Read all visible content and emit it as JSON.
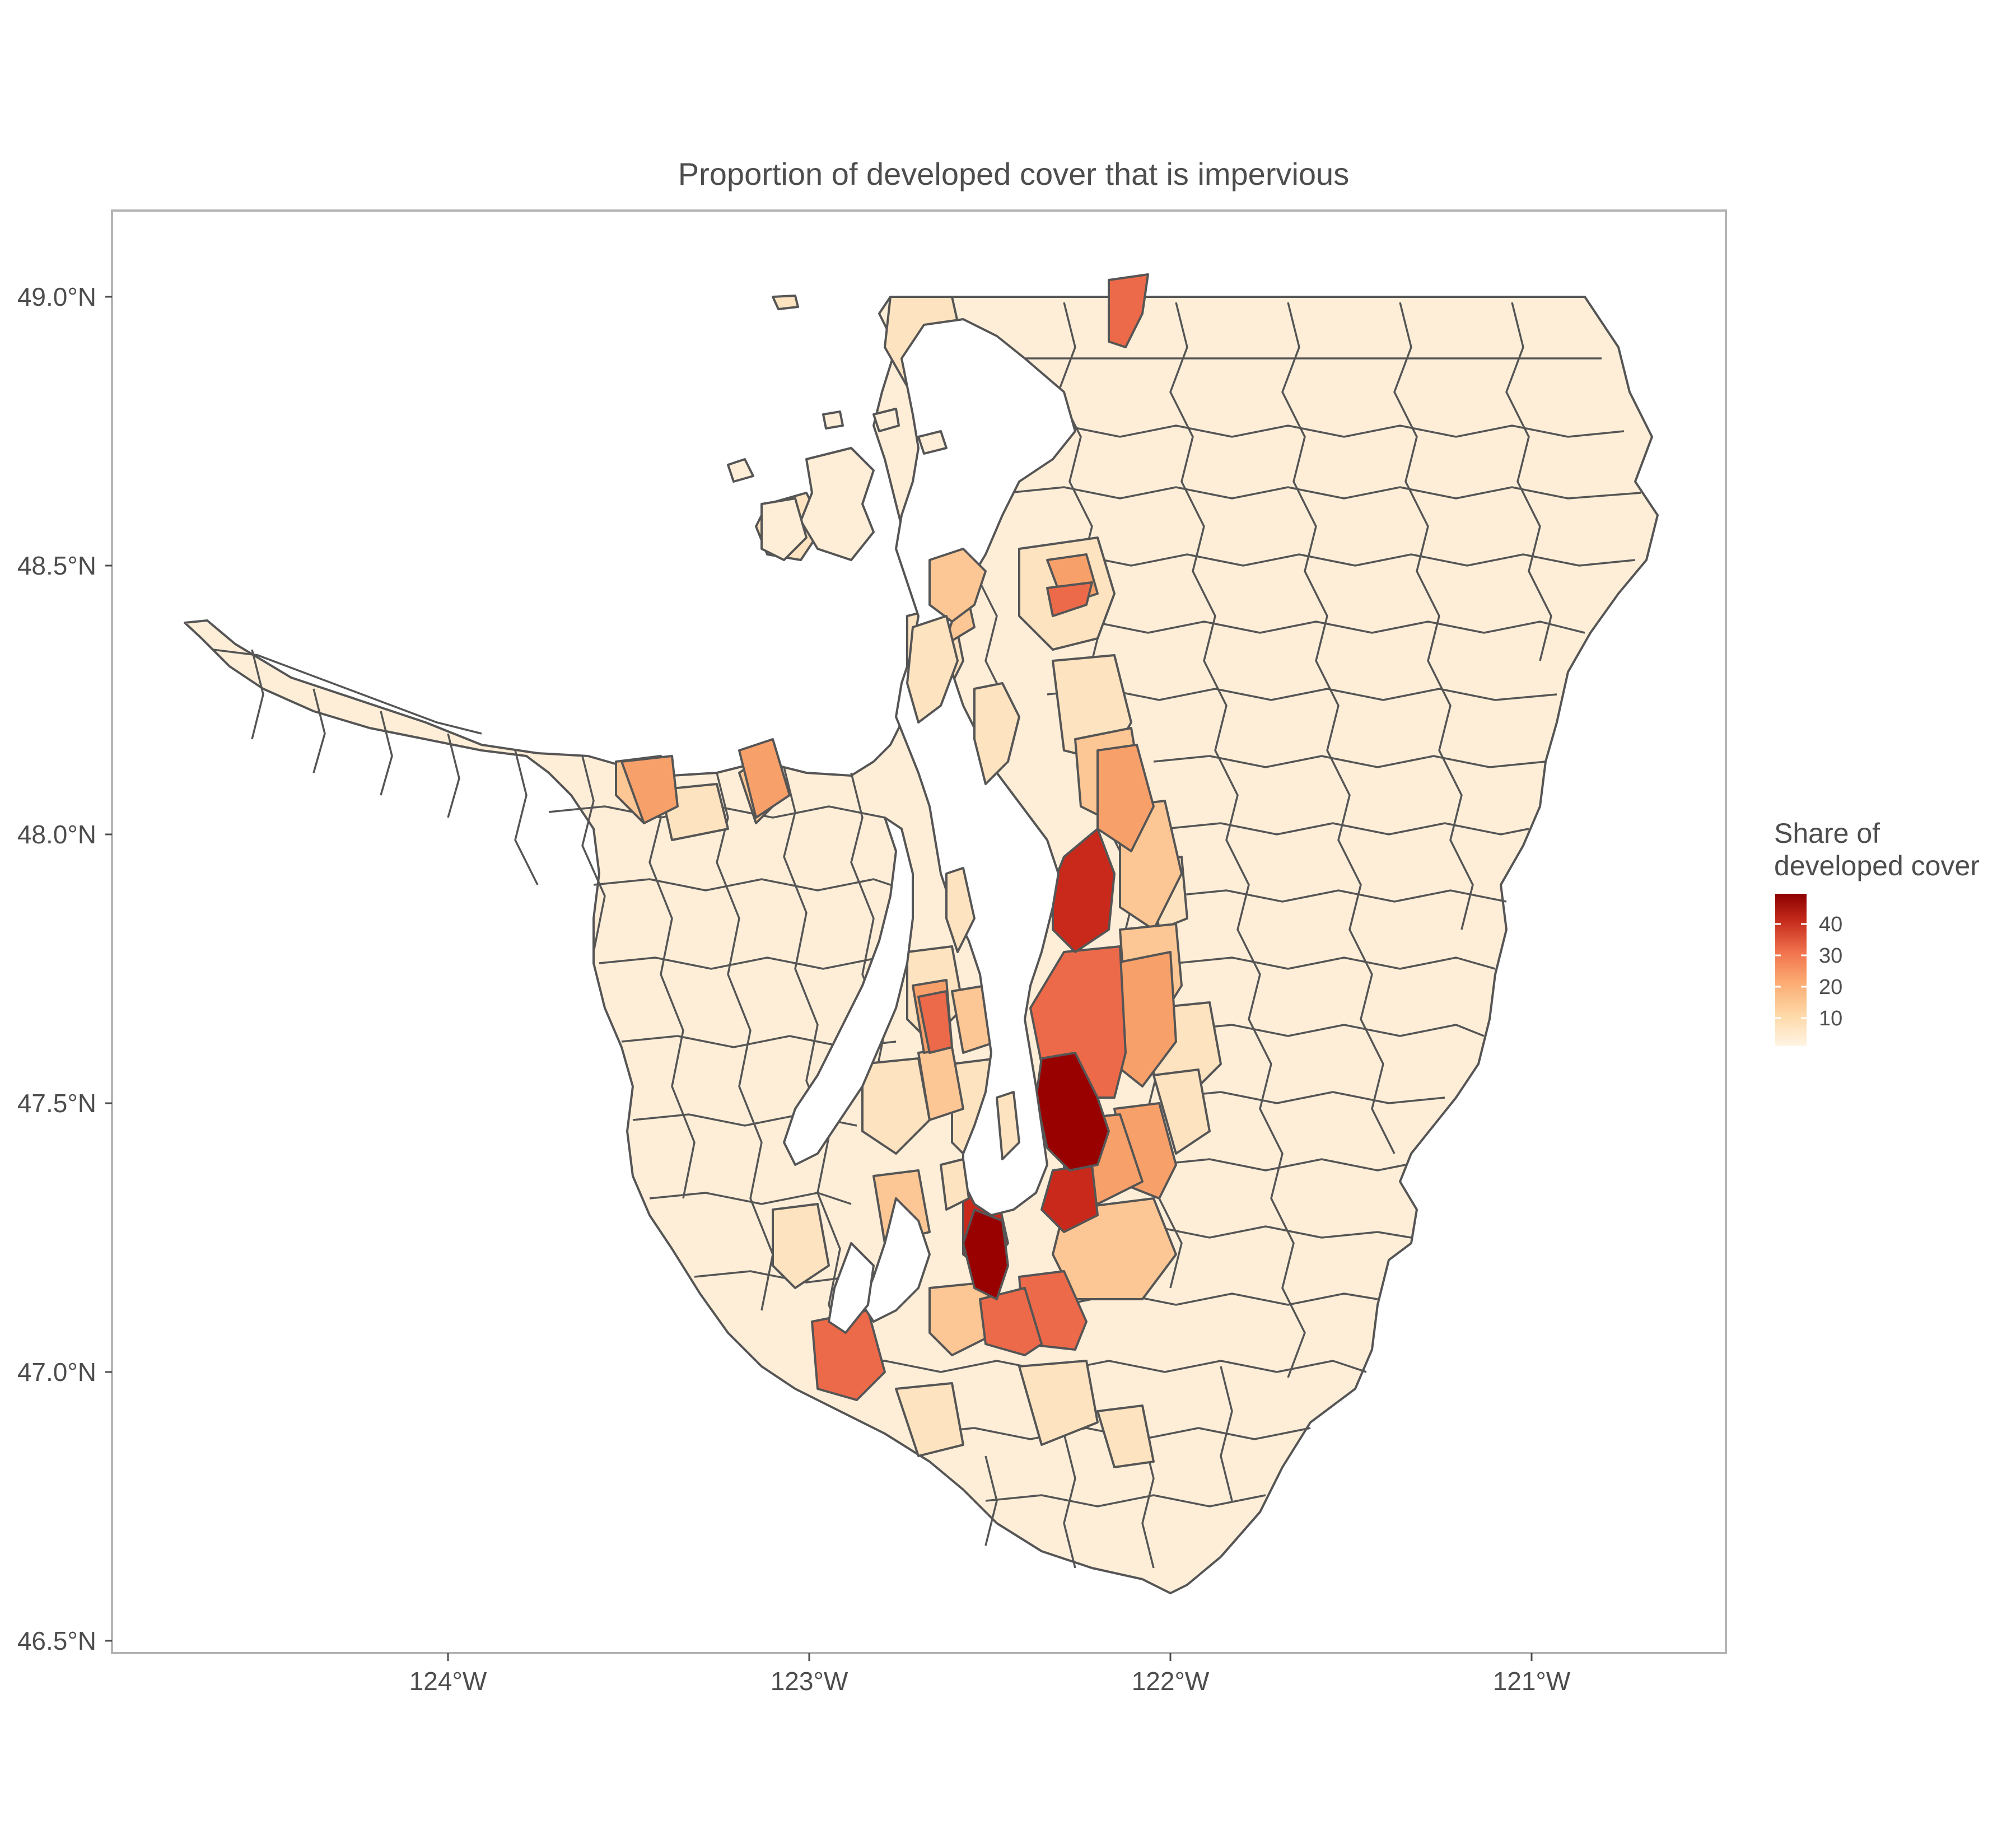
{
  "title": "Proportion of developed cover that is impervious",
  "axes": {
    "x_ticks": [
      "124°W",
      "123°W",
      "122°W",
      "121°W"
    ],
    "y_ticks": [
      "49.0°N",
      "48.5°N",
      "48.0°N",
      "47.5°N",
      "47.0°N",
      "46.5°N"
    ]
  },
  "legend": {
    "title_line1": "Share  of",
    "title_line2": "developed cover",
    "labels": [
      "40",
      "30",
      "20",
      "10"
    ],
    "colors": [
      "#fff4e4",
      "#fdd9a8",
      "#fcab72",
      "#f0714d",
      "#c62c1c",
      "#8c0000"
    ]
  },
  "colors": {
    "panel_border": "#b3b3b3",
    "region_outline": "#555555",
    "very_low": "#feeed8",
    "low": "#fde3bf",
    "mid_low": "#fcc794",
    "mid": "#f8a06a",
    "high": "#ec6a49",
    "very_high": "#c9291b",
    "max": "#990000"
  }
}
